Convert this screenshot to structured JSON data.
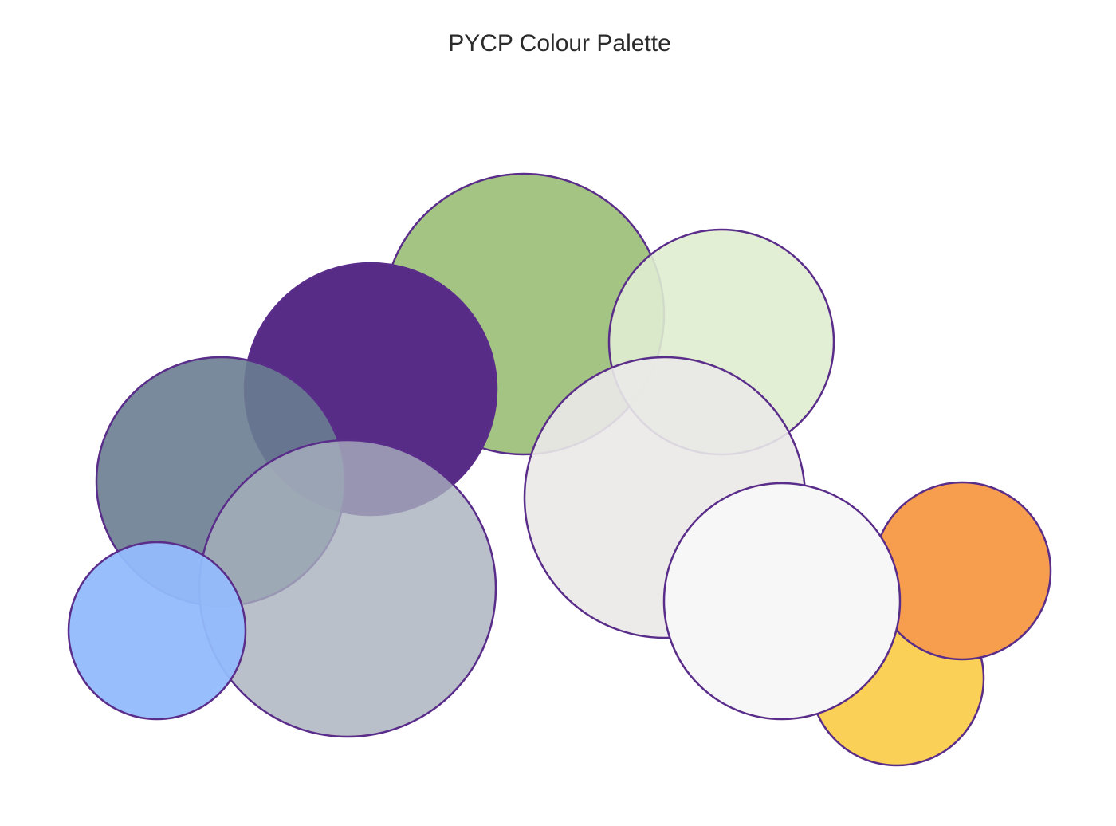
{
  "chart_data": {
    "type": "bubble",
    "title": "PYCP Colour Palette",
    "outline_color": "#5a2d8a",
    "series": [
      {
        "color": "#a3c482",
        "opacity": 1.0
      },
      {
        "color": "#dfedd0",
        "opacity": 0.9
      },
      {
        "color": "#572c87",
        "opacity": 1.0
      },
      {
        "color": "#6a7d91",
        "opacity": 0.9
      },
      {
        "color": "#eae9e8",
        "opacity": 0.9
      },
      {
        "color": "#fbd056",
        "opacity": 1.0
      },
      {
        "color": "#f69e4d",
        "opacity": 1.0
      },
      {
        "color": "#f7f7f7",
        "opacity": 1.0
      },
      {
        "color": "#a7b0bd",
        "opacity": 0.8
      },
      {
        "color": "#94bbfc",
        "opacity": 0.95
      }
    ]
  }
}
